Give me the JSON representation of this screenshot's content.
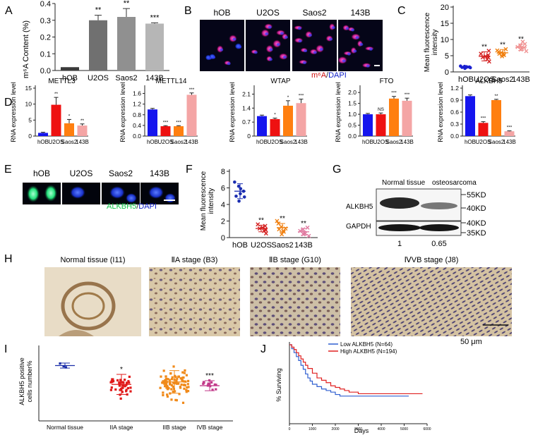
{
  "panels": {
    "A": {
      "letter": "A",
      "ylabel": "m⁶A Content (%)",
      "categories": [
        "hOB",
        "U2OS",
        "Saos2",
        "143B"
      ],
      "yticks": [
        "0.0",
        "0.1",
        "0.2",
        "0.3",
        "0.4"
      ],
      "sig": [
        "",
        "**",
        "**",
        "***"
      ],
      "colors": [
        "#3a3a3a",
        "#707070",
        "#909090",
        "#b6b6b6"
      ]
    },
    "B": {
      "letter": "B",
      "labels": [
        "hOB",
        "U2OS",
        "Saos2",
        "143B"
      ],
      "stain_a": "m⁶A",
      "slash": "/",
      "stain_b": "DAPI"
    },
    "C": {
      "letter": "C",
      "ylabel1": "Mean fluorescence",
      "ylabel2": "intensity",
      "categories": [
        "hOB",
        "U2OS",
        "Saos2",
        "143B"
      ],
      "yticks": [
        "0",
        "5",
        "10",
        "15",
        "20"
      ],
      "sig": [
        "",
        "**",
        "**",
        "**"
      ]
    },
    "D": {
      "letter": "D",
      "ylabel": "RNA expression level",
      "categories": [
        "hOB",
        "U2OS",
        "Saos2",
        "143B"
      ],
      "charts": [
        {
          "title": "METTL3",
          "yticks": [
            "0",
            "5",
            "10",
            "15"
          ],
          "sig": [
            "",
            "**",
            "*",
            "**"
          ]
        },
        {
          "title": "METTL14",
          "yticks": [
            "0.0",
            "0.4",
            "0.8",
            "1.2",
            "1.6"
          ],
          "sig": [
            "",
            "***",
            "***",
            "***"
          ]
        },
        {
          "title": "WTAP",
          "yticks": [
            "0",
            "0.7",
            "1.4",
            "2.1"
          ],
          "sig": [
            "",
            "*",
            "*",
            "***"
          ]
        },
        {
          "title": "FTO",
          "yticks": [
            "0.0",
            "0.5",
            "1.0",
            "1.5",
            "2.0"
          ],
          "sig": [
            "",
            "NS",
            "***",
            "***"
          ]
        },
        {
          "title": "ALKBH5",
          "yticks": [
            "0.0",
            "0.3",
            "0.6",
            "0.9",
            "1.2"
          ],
          "sig": [
            "",
            "***",
            "**",
            "***"
          ]
        }
      ],
      "colors": [
        "#1515ee",
        "#ee1111",
        "#ff7f10",
        "#f4a5a5"
      ]
    },
    "E": {
      "letter": "E",
      "labels": [
        "hOB",
        "U2OS",
        "Saos2",
        "143B"
      ],
      "stain_a": "ALKBH5",
      "slash": "/",
      "stain_b": "DAPI"
    },
    "F": {
      "letter": "F",
      "ylabel1": "Mean fluorescence",
      "ylabel2": "intensity",
      "categories": [
        "hOB",
        "U2OS",
        "Saos2",
        "143B"
      ],
      "yticks": [
        "0",
        "2",
        "4",
        "6",
        "8"
      ],
      "sig": [
        "",
        "**",
        "**",
        "**"
      ]
    },
    "G": {
      "letter": "G",
      "columns": [
        "Normal tissue",
        "osteosarcoma"
      ],
      "rows": [
        "ALKBH5",
        "GAPDH"
      ],
      "mw_top": [
        "55KD",
        "40KD"
      ],
      "mw_bottom": [
        "40KD",
        "35KD"
      ],
      "quant": [
        "1",
        "0.65"
      ]
    },
    "H": {
      "letter": "H",
      "titles": [
        "Normal tissue (I11)",
        "ⅡA stage (B3)",
        "ⅡB stage (G10)",
        "ⅣVB stage (J8)"
      ],
      "scale": "50 μm"
    },
    "I": {
      "letter": "I",
      "ylabel1": "ALKBH5 positive",
      "ylabel2": "cells number%",
      "categories": [
        "Normal tissue",
        "IIA stage",
        "IIB stage",
        "IVB stage"
      ],
      "sig": [
        "",
        "*",
        "",
        "***"
      ],
      "colors": [
        "#1a2da8",
        "#e01a1a",
        "#f08a1a",
        "#c23a8a"
      ]
    },
    "J": {
      "letter": "J",
      "ylabel": "% Surviving",
      "xlabel": "Days",
      "xticks": [
        "0",
        "1000",
        "2000",
        "3000",
        "4000",
        "5000",
        "6000"
      ],
      "legend": [
        {
          "name": "Low ALKBH5 (N=64)",
          "color": "#2f5fd0"
        },
        {
          "name": "High ALKBH5 (N=194)",
          "color": "#e02020"
        }
      ]
    }
  },
  "chart_data": [
    {
      "type": "bar",
      "title": "",
      "categories": [
        "hOB",
        "U2OS",
        "Saos2",
        "143B"
      ],
      "values": [
        0.02,
        0.3,
        0.32,
        0.28
      ],
      "errors": [
        0,
        0.03,
        0.05,
        0.005
      ],
      "ylabel": "m⁶A Content (%)",
      "ylim": [
        0,
        0.4
      ]
    },
    {
      "type": "scatter",
      "categories": [
        "hOB",
        "U2OS",
        "Saos2",
        "143B"
      ],
      "means": [
        1.5,
        4.8,
        5.9,
        7.6
      ],
      "sd": [
        0.3,
        1.4,
        1.0,
        1.0
      ],
      "points": [
        [
          1.1,
          1.3,
          1.4,
          1.5,
          1.6,
          1.7,
          1.8,
          1.4
        ],
        [
          3.2,
          3.9,
          4.4,
          4.8,
          5.2,
          5.6,
          6.5,
          4.5
        ],
        [
          4.8,
          5.2,
          5.6,
          5.9,
          6.2,
          6.6,
          7.0,
          5.7
        ],
        [
          6.4,
          6.9,
          7.3,
          7.7,
          8.1,
          8.6,
          9.3,
          7.5
        ]
      ],
      "ylabel": "Mean fluorescence intensity",
      "ylim": [
        0,
        20
      ]
    },
    {
      "type": "bar",
      "title": "METTL3",
      "categories": [
        "hOB",
        "U2OS",
        "Saos2",
        "143B"
      ],
      "values": [
        1.0,
        9.8,
        4.0,
        3.3
      ],
      "errors": [
        0.2,
        2.3,
        1.2,
        0.5
      ],
      "ylim": [
        0,
        15
      ]
    },
    {
      "type": "bar",
      "title": "METTL14",
      "categories": [
        "hOB",
        "U2OS",
        "Saos2",
        "143B"
      ],
      "values": [
        1.0,
        0.37,
        0.37,
        1.55
      ],
      "errors": [
        0.04,
        0.02,
        0.02,
        0.07
      ],
      "ylim": [
        0,
        1.8
      ]
    },
    {
      "type": "bar",
      "title": "WTAP",
      "categories": [
        "hOB",
        "U2OS",
        "Saos2",
        "143B"
      ],
      "values": [
        1.0,
        0.85,
        1.52,
        1.65
      ],
      "errors": [
        0.05,
        0.05,
        0.25,
        0.2
      ],
      "ylim": [
        0,
        2.4
      ]
    },
    {
      "type": "bar",
      "title": "FTO",
      "categories": [
        "hOB",
        "U2OS",
        "Saos2",
        "143B"
      ],
      "values": [
        1.0,
        1.0,
        1.72,
        1.62
      ],
      "errors": [
        0.04,
        0.06,
        0.1,
        0.12
      ],
      "ylim": [
        0,
        2.2
      ]
    },
    {
      "type": "bar",
      "title": "ALKBH5",
      "categories": [
        "hOB",
        "U2OS",
        "Saos2",
        "143B"
      ],
      "values": [
        1.0,
        0.33,
        0.9,
        0.12
      ],
      "errors": [
        0.03,
        0.03,
        0.02,
        0.01
      ],
      "ylim": [
        0,
        1.2
      ]
    },
    {
      "type": "scatter",
      "categories": [
        "hOB",
        "U2OS",
        "Saos2",
        "143B"
      ],
      "means": [
        5.6,
        1.1,
        1.2,
        0.7
      ],
      "sd": [
        0.9,
        0.4,
        0.5,
        0.4
      ],
      "points": [
        [
          4.4,
          4.9,
          5.3,
          5.6,
          5.9,
          6.2,
          6.7,
          5.0
        ],
        [
          0.5,
          0.8,
          1.0,
          1.2,
          1.4,
          1.6,
          0.9,
          1.1
        ],
        [
          0.4,
          0.7,
          1.0,
          1.3,
          1.7,
          2.0,
          1.1,
          0.8
        ],
        [
          0.2,
          0.4,
          0.6,
          0.8,
          1.0,
          1.2,
          0.5
        ]
      ],
      "ylabel": "Mean fluorescence intensity",
      "ylim": [
        0,
        8
      ]
    },
    {
      "type": "scatter",
      "categories": [
        "Normal tissue",
        "IIA stage",
        "IIB stage",
        "IVB stage"
      ],
      "means": [
        88,
        58,
        62,
        56
      ],
      "sd": [
        4,
        16,
        18,
        8
      ],
      "counts": [
        3,
        40,
        90,
        15
      ],
      "ylabel": "ALKBH5 positive cells number%",
      "ylim": [
        0,
        120
      ]
    },
    {
      "type": "line",
      "title": "",
      "xlabel": "Days",
      "ylabel": "% Surviving",
      "xlim": [
        0,
        6000
      ],
      "ylim": [
        0,
        100
      ],
      "series": [
        {
          "name": "Low ALKBH5 (N=64)",
          "x": [
            0,
            100,
            200,
            300,
            400,
            500,
            600,
            700,
            800,
            900,
            1000,
            1200,
            1400,
            1600,
            1800,
            2000,
            2200,
            2400,
            2500,
            5200
          ],
          "y": [
            100,
            95,
            90,
            85,
            80,
            74,
            69,
            63,
            58,
            54,
            50,
            47,
            44,
            42,
            40,
            37,
            35,
            35,
            35,
            35
          ]
        },
        {
          "name": "High ALKBH5 (N=194)",
          "x": [
            0,
            100,
            200,
            300,
            400,
            500,
            600,
            700,
            800,
            1000,
            1200,
            1400,
            1600,
            1800,
            2000,
            2200,
            2400,
            2600,
            3000,
            5800
          ],
          "y": [
            100,
            97,
            94,
            90,
            86,
            82,
            78,
            74,
            70,
            64,
            58,
            55,
            52,
            48,
            46,
            44,
            42,
            40,
            38,
            38
          ]
        }
      ]
    }
  ]
}
